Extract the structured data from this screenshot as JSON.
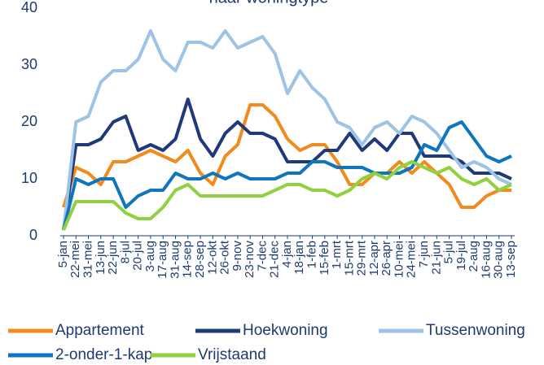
{
  "chart_data": {
    "type": "line",
    "title": "naar woningtype",
    "categories": [
      "5-jan",
      "22-mei",
      "31-mei",
      "13-jun",
      "22-jun",
      "8-jul",
      "20-jul",
      "3-aug",
      "17-aug",
      "31-aug",
      "14-sep",
      "28-sep",
      "12-okt",
      "26-okt",
      "9-nov",
      "23-nov",
      "7-dec",
      "21-dec",
      "4-jan",
      "18-jan",
      "1-feb",
      "15-feb",
      "1-mrt",
      "15-mrt",
      "29-mrt",
      "12-apr",
      "26-apr",
      "10-mei",
      "24-mei",
      "7-jun",
      "21-jun",
      "5-jul",
      "19-jul",
      "2-aug",
      "16-aug",
      "30-aug",
      "13-sep"
    ],
    "series": [
      {
        "name": "Appartement",
        "color": "#f28a1e",
        "values": [
          5,
          12,
          11,
          9,
          13,
          13,
          14,
          15,
          14,
          13,
          15,
          11,
          9,
          14,
          16,
          23,
          23,
          21,
          17,
          15,
          16,
          16,
          13,
          9,
          9,
          11,
          11,
          13,
          11,
          13,
          11,
          9,
          5,
          5,
          7,
          8,
          8
        ]
      },
      {
        "name": "Hoekwoning",
        "color": "#1f3a7a",
        "values": [
          1,
          16,
          16,
          17,
          20,
          21,
          15,
          16,
          15,
          17,
          24,
          17,
          14,
          18,
          20,
          18,
          18,
          17,
          13,
          13,
          13,
          15,
          15,
          18,
          15,
          17,
          15,
          18,
          18,
          14,
          14,
          14,
          13,
          11,
          11,
          11,
          10
        ]
      },
      {
        "name": "Tussenwoning",
        "color": "#9dc3e6",
        "values": [
          1,
          20,
          21,
          27,
          29,
          29,
          31,
          36,
          31,
          29,
          34,
          34,
          33,
          36,
          33,
          34,
          35,
          32,
          25,
          29,
          26,
          24,
          20,
          19,
          16,
          19,
          20,
          18,
          21,
          20,
          18,
          15,
          12,
          13,
          12,
          10,
          9
        ]
      },
      {
        "name": "2-onder-1-kap",
        "color": "#0f75bc",
        "values": [
          1,
          10,
          9,
          10,
          10,
          5,
          7,
          8,
          8,
          11,
          10,
          10,
          11,
          10,
          11,
          10,
          10,
          10,
          11,
          11,
          13,
          13,
          12,
          12,
          12,
          11,
          11,
          11,
          12,
          16,
          15,
          19,
          20,
          17,
          14,
          13,
          14
        ]
      },
      {
        "name": "Vrijstaand",
        "color": "#8fd13f",
        "values": [
          1,
          6,
          6,
          6,
          6,
          4,
          3,
          3,
          5,
          8,
          9,
          7,
          7,
          7,
          7,
          7,
          7,
          8,
          9,
          9,
          8,
          8,
          7,
          8,
          10,
          11,
          10,
          12,
          13,
          12,
          11,
          12,
          10,
          9,
          10,
          8,
          9
        ]
      }
    ],
    "ylim": [
      0,
      40
    ],
    "yticks": [
      0,
      10,
      20,
      30,
      40
    ],
    "grid": false
  }
}
